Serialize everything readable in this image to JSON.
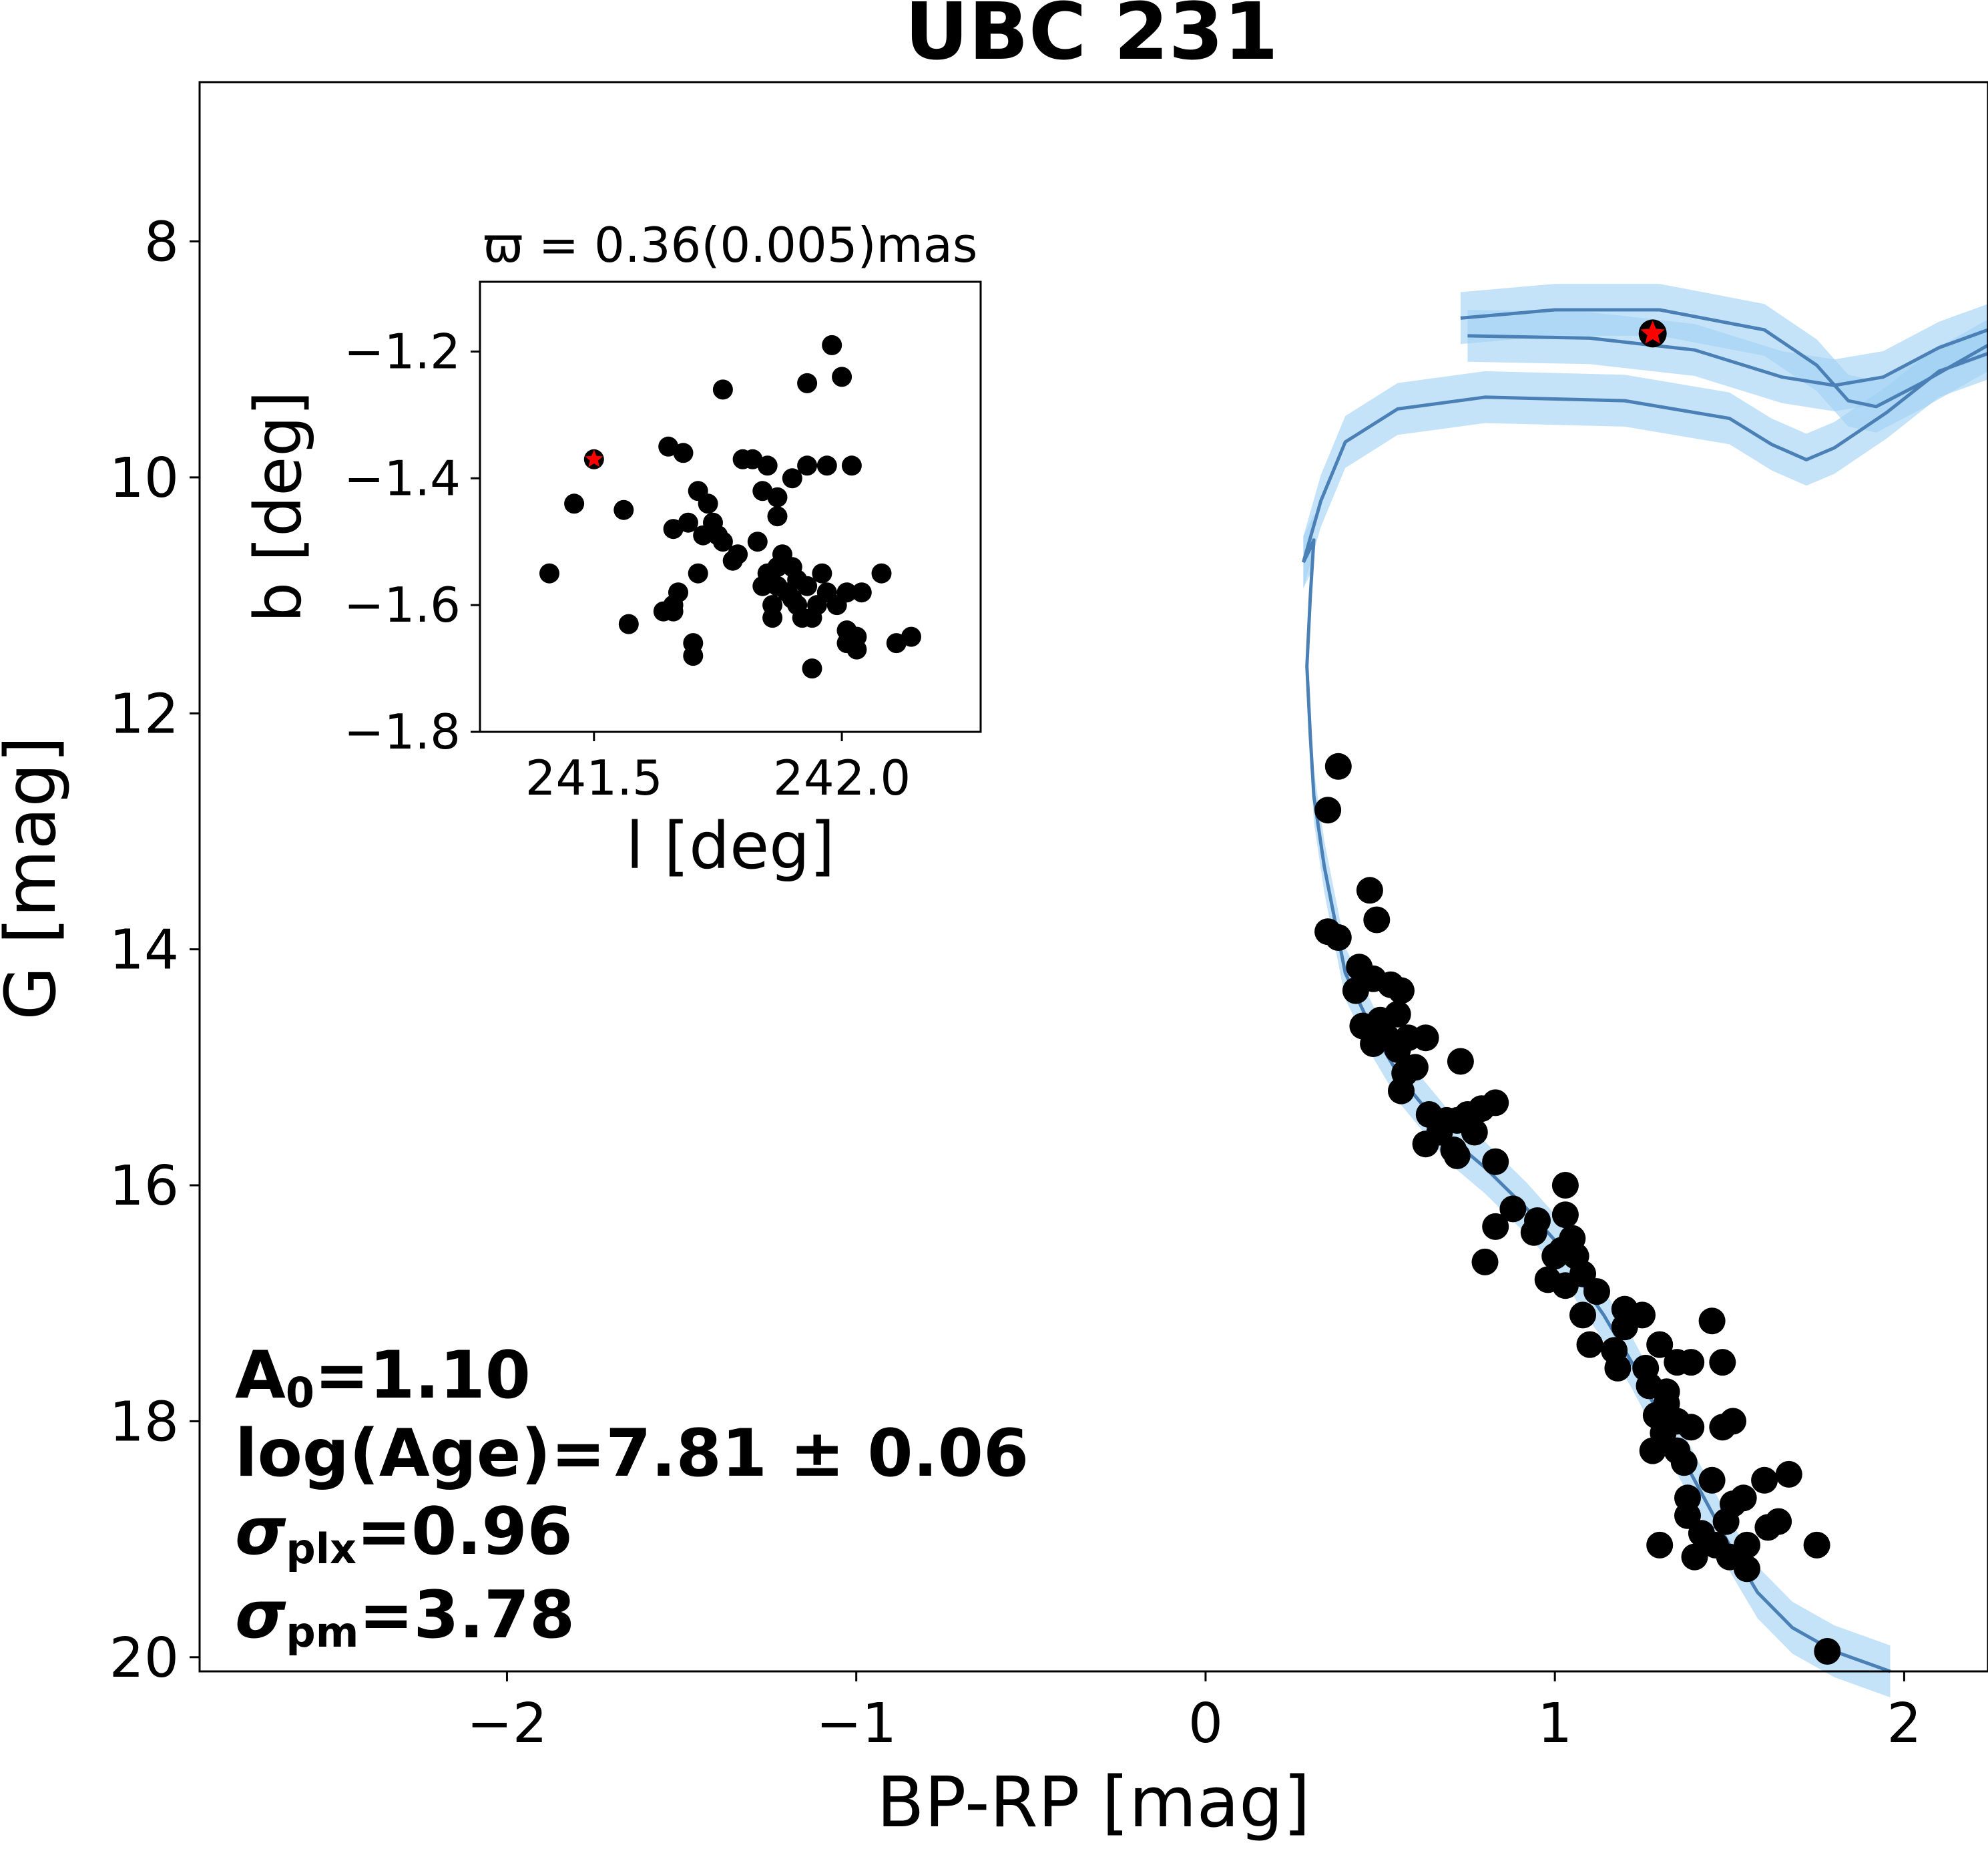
{
  "chart_data": {
    "type": "scatter",
    "title": "UBC 231",
    "xlabel": "BP-RP [mag]",
    "ylabel": "G [mag]",
    "xlim": [
      -2.88,
      2.24
    ],
    "ylim": [
      20.12,
      6.65
    ],
    "y_inverted": true,
    "x_ticks": [
      -2,
      -1,
      0,
      1,
      2
    ],
    "x_tick_labels": [
      "−2",
      "−1",
      "0",
      "1",
      "2"
    ],
    "y_ticks": [
      8,
      10,
      12,
      14,
      16,
      18,
      20
    ],
    "y_tick_labels": [
      "8",
      "10",
      "12",
      "14",
      "16",
      "18",
      "20"
    ],
    "colors": {
      "points": "#000000",
      "highlight": "#ff0000",
      "isochrone": "#4a80b5",
      "band": "#9fd1f4"
    },
    "members": [
      [
        0.38,
        12.45
      ],
      [
        0.35,
        12.82
      ],
      [
        0.47,
        13.5
      ],
      [
        0.49,
        13.75
      ],
      [
        0.35,
        13.85
      ],
      [
        0.38,
        13.9
      ],
      [
        0.44,
        14.15
      ],
      [
        0.48,
        14.25
      ],
      [
        0.43,
        14.35
      ],
      [
        0.53,
        14.3
      ],
      [
        0.56,
        14.35
      ],
      [
        0.55,
        14.55
      ],
      [
        0.5,
        14.6
      ],
      [
        0.45,
        14.65
      ],
      [
        0.52,
        14.75
      ],
      [
        0.48,
        14.8
      ],
      [
        0.55,
        14.85
      ],
      [
        0.58,
        14.75
      ],
      [
        0.63,
        14.75
      ],
      [
        0.73,
        14.95
      ],
      [
        0.6,
        15
      ],
      [
        0.57,
        15.05
      ],
      [
        0.56,
        15.2
      ],
      [
        0.64,
        15.4
      ],
      [
        0.69,
        15.45
      ],
      [
        0.72,
        15.45
      ],
      [
        0.75,
        15.4
      ],
      [
        0.79,
        15.35
      ],
      [
        0.83,
        15.3
      ],
      [
        0.67,
        15.55
      ],
      [
        0.77,
        15.55
      ],
      [
        0.63,
        15.65
      ],
      [
        0.71,
        15.7
      ],
      [
        0.72,
        15.75
      ],
      [
        0.83,
        15.8
      ],
      [
        1.03,
        16
      ],
      [
        0.88,
        16.2
      ],
      [
        1.03,
        16.25
      ],
      [
        0.95,
        16.3
      ],
      [
        0.83,
        16.35
      ],
      [
        0.94,
        16.4
      ],
      [
        1.05,
        16.45
      ],
      [
        1.02,
        16.55
      ],
      [
        1,
        16.6
      ],
      [
        1.06,
        16.6
      ],
      [
        1.08,
        16.75
      ],
      [
        0.8,
        16.65
      ],
      [
        0.98,
        16.8
      ],
      [
        1.03,
        16.85
      ],
      [
        1.12,
        16.9
      ],
      [
        1.2,
        17.05
      ],
      [
        1.08,
        17.1
      ],
      [
        1.25,
        17.1
      ],
      [
        1.2,
        17.2
      ],
      [
        1.1,
        17.35
      ],
      [
        1.17,
        17.4
      ],
      [
        1.3,
        17.35
      ],
      [
        1.45,
        17.15
      ],
      [
        1.18,
        17.55
      ],
      [
        1.26,
        17.55
      ],
      [
        1.35,
        17.5
      ],
      [
        1.39,
        17.5
      ],
      [
        1.27,
        17.7
      ],
      [
        1.32,
        17.75
      ],
      [
        1.48,
        17.5
      ],
      [
        1.32,
        17.85
      ],
      [
        1.29,
        17.95
      ],
      [
        1.35,
        18
      ],
      [
        1.31,
        18.1
      ],
      [
        1.39,
        18.05
      ],
      [
        1.48,
        18.05
      ],
      [
        1.51,
        18
      ],
      [
        1.28,
        18.25
      ],
      [
        1.35,
        18.25
      ],
      [
        1.37,
        18.35
      ],
      [
        1.45,
        18.5
      ],
      [
        1.6,
        18.5
      ],
      [
        1.67,
        18.45
      ],
      [
        1.38,
        18.65
      ],
      [
        1.51,
        18.7
      ],
      [
        1.54,
        18.65
      ],
      [
        1.38,
        18.8
      ],
      [
        1.49,
        18.85
      ],
      [
        1.42,
        18.95
      ],
      [
        1.61,
        18.9
      ],
      [
        1.64,
        18.85
      ],
      [
        1.3,
        19.05
      ],
      [
        1.46,
        19.05
      ],
      [
        1.55,
        19.05
      ],
      [
        1.75,
        19.05
      ],
      [
        1.4,
        19.15
      ],
      [
        1.5,
        19.15
      ],
      [
        1.55,
        19.25
      ],
      [
        1.78,
        19.95
      ]
    ],
    "highlight_star": [
      1.28,
      8.78
    ],
    "isochrone": [
      [
        0.28,
        10.72
      ],
      [
        0.3,
        10.6
      ],
      [
        0.31,
        10.53
      ],
      [
        0.3,
        11
      ],
      [
        0.29,
        11.6
      ],
      [
        0.3,
        12.2
      ],
      [
        0.31,
        12.7
      ],
      [
        0.34,
        13.3
      ],
      [
        0.4,
        14.2
      ],
      [
        0.48,
        14.7
      ],
      [
        0.56,
        15.1
      ],
      [
        0.7,
        15.6
      ],
      [
        0.8,
        15.85
      ],
      [
        0.92,
        16.2
      ],
      [
        1.01,
        16.5
      ],
      [
        1.07,
        16.8
      ],
      [
        1.14,
        17.1
      ],
      [
        1.22,
        17.5
      ],
      [
        1.3,
        17.95
      ],
      [
        1.4,
        18.5
      ],
      [
        1.5,
        19.05
      ],
      [
        1.58,
        19.45
      ],
      [
        1.68,
        19.75
      ],
      [
        1.8,
        19.95
      ],
      [
        1.96,
        20.12
      ]
    ],
    "isochrone_upper": [
      [
        0.28,
        10.72
      ],
      [
        0.33,
        10.2
      ],
      [
        0.4,
        9.7
      ],
      [
        0.55,
        9.42
      ],
      [
        0.8,
        9.32
      ],
      [
        1.2,
        9.35
      ],
      [
        1.5,
        9.5
      ],
      [
        1.62,
        9.72
      ],
      [
        1.72,
        9.85
      ],
      [
        1.8,
        9.75
      ],
      [
        1.95,
        9.45
      ],
      [
        2.1,
        9.1
      ],
      [
        2.24,
        8.95
      ]
    ],
    "isochrone_branch": [
      [
        0.73,
        8.65
      ],
      [
        1.0,
        8.58
      ],
      [
        1.3,
        8.58
      ],
      [
        1.6,
        8.75
      ],
      [
        1.75,
        9.05
      ],
      [
        1.84,
        9.35
      ],
      [
        1.92,
        9.4
      ],
      [
        2.05,
        9.2
      ],
      [
        2.24,
        8.88
      ]
    ],
    "isochrone_loop": [
      [
        0.75,
        8.8
      ],
      [
        1.1,
        8.82
      ],
      [
        1.4,
        8.92
      ],
      [
        1.65,
        9.15
      ],
      [
        1.8,
        9.22
      ],
      [
        1.94,
        9.15
      ],
      [
        2.1,
        8.9
      ],
      [
        2.24,
        8.75
      ]
    ],
    "band_width": 0.22,
    "annotations": {
      "a0_label": "A",
      "a0_sub": "0",
      "a0_value": "=1.10",
      "age": "log(Age)=7.81 ± 0.06",
      "splx_symbol": "σ",
      "splx_sub": "plx",
      "splx_value": "=0.96",
      "spm_symbol": "σ",
      "spm_sub": "pm",
      "spm_value": "=3.78"
    },
    "inset": {
      "title": "ϖ = 0.36(0.005)mas",
      "xlabel": "l [deg]",
      "ylabel": "b [deg]",
      "xlim": [
        241.27,
        242.28
      ],
      "ylim": [
        -1.8,
        -1.09
      ],
      "x_ticks": [
        241.5,
        242.0
      ],
      "x_tick_labels": [
        "241.5",
        "242.0"
      ],
      "y_ticks": [
        -1.2,
        -1.4,
        -1.6,
        -1.8
      ],
      "y_tick_labels": [
        "−1.2",
        "−1.4",
        "−1.6",
        "−1.8"
      ],
      "points": [
        [
          241.98,
          -1.19
        ],
        [
          242.0,
          -1.24
        ],
        [
          241.93,
          -1.25
        ],
        [
          241.76,
          -1.26
        ],
        [
          241.65,
          -1.35
        ],
        [
          241.68,
          -1.36
        ],
        [
          241.8,
          -1.37
        ],
        [
          241.82,
          -1.37
        ],
        [
          241.85,
          -1.38
        ],
        [
          241.93,
          -1.38
        ],
        [
          241.97,
          -1.38
        ],
        [
          242.02,
          -1.38
        ],
        [
          241.9,
          -1.4
        ],
        [
          241.71,
          -1.42
        ],
        [
          241.84,
          -1.42
        ],
        [
          241.87,
          -1.43
        ],
        [
          241.46,
          -1.44
        ],
        [
          241.73,
          -1.44
        ],
        [
          241.56,
          -1.45
        ],
        [
          241.87,
          -1.46
        ],
        [
          241.69,
          -1.47
        ],
        [
          241.74,
          -1.47
        ],
        [
          241.66,
          -1.48
        ],
        [
          241.72,
          -1.49
        ],
        [
          241.75,
          -1.49
        ],
        [
          241.76,
          -1.5
        ],
        [
          241.83,
          -1.5
        ],
        [
          241.79,
          -1.52
        ],
        [
          241.78,
          -1.53
        ],
        [
          241.88,
          -1.52
        ],
        [
          241.87,
          -1.54
        ],
        [
          241.9,
          -1.54
        ],
        [
          241.85,
          -1.55
        ],
        [
          241.91,
          -1.56
        ],
        [
          241.96,
          -1.55
        ],
        [
          241.41,
          -1.55
        ],
        [
          241.71,
          -1.55
        ],
        [
          241.84,
          -1.57
        ],
        [
          241.87,
          -1.57
        ],
        [
          241.89,
          -1.58
        ],
        [
          241.93,
          -1.57
        ],
        [
          241.97,
          -1.58
        ],
        [
          241.95,
          -1.6
        ],
        [
          242.01,
          -1.58
        ],
        [
          242.04,
          -1.58
        ],
        [
          242.08,
          -1.55
        ],
        [
          241.99,
          -1.6
        ],
        [
          241.86,
          -1.6
        ],
        [
          241.67,
          -1.58
        ],
        [
          241.91,
          -1.6
        ],
        [
          241.66,
          -1.6
        ],
        [
          241.94,
          -1.62
        ],
        [
          241.64,
          -1.61
        ],
        [
          241.86,
          -1.62
        ],
        [
          241.92,
          -1.62
        ],
        [
          241.57,
          -1.63
        ],
        [
          242.01,
          -1.64
        ],
        [
          242.03,
          -1.65
        ],
        [
          242.01,
          -1.66
        ],
        [
          242.03,
          -1.67
        ],
        [
          242.11,
          -1.66
        ],
        [
          242.14,
          -1.65
        ],
        [
          241.7,
          -1.66
        ],
        [
          241.7,
          -1.68
        ],
        [
          241.94,
          -1.7
        ],
        [
          241.66,
          -1.61
        ],
        [
          241.9,
          -1.59
        ]
      ],
      "highlight": [
        241.5,
        -1.37
      ]
    }
  }
}
